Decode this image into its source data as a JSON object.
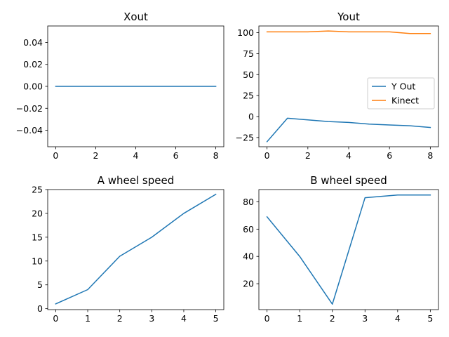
{
  "chart_data": [
    {
      "type": "line",
      "title": "Xout",
      "xlabel": "",
      "ylabel": "",
      "xlim": [
        -0.4,
        8.4
      ],
      "ylim": [
        -0.055,
        0.055
      ],
      "xticks": [
        0,
        2,
        4,
        6,
        8
      ],
      "yticks": [
        -0.04,
        -0.02,
        0.0,
        0.02,
        0.04
      ],
      "ytick_labels": [
        "−0.04",
        "−0.02",
        "0.00",
        "0.02",
        "0.04"
      ],
      "grid": false,
      "legend": null,
      "series": [
        {
          "name": "",
          "color": "#1f77b4",
          "x": [
            0,
            1,
            2,
            3,
            4,
            5,
            6,
            7,
            8
          ],
          "values": [
            0,
            0,
            0,
            0,
            0,
            0,
            0,
            0,
            0
          ]
        }
      ]
    },
    {
      "type": "line",
      "title": "Yout",
      "xlabel": "",
      "ylabel": "",
      "xlim": [
        -0.4,
        8.4
      ],
      "ylim": [
        -36,
        108
      ],
      "xticks": [
        0,
        2,
        4,
        6,
        8
      ],
      "yticks": [
        -25,
        0,
        25,
        50,
        75,
        100
      ],
      "ytick_labels": [
        "−25",
        "0",
        "25",
        "50",
        "75",
        "100"
      ],
      "grid": false,
      "legend": "center-right",
      "series": [
        {
          "name": "Y Out",
          "color": "#1f77b4",
          "x": [
            0,
            1,
            2,
            3,
            4,
            5,
            6,
            7,
            8
          ],
          "values": [
            -30,
            -2,
            -4,
            -6,
            -7,
            -9,
            -10,
            -11,
            -13
          ]
        },
        {
          "name": "Kinect",
          "color": "#ff7f0e",
          "x": [
            0,
            1,
            2,
            3,
            4,
            5,
            6,
            7,
            8
          ],
          "values": [
            101,
            101,
            101,
            102,
            101,
            101,
            101,
            99,
            99
          ]
        }
      ]
    },
    {
      "type": "line",
      "title": "A wheel speed",
      "xlabel": "",
      "ylabel": "",
      "xlim": [
        -0.25,
        5.25
      ],
      "ylim": [
        -0.2,
        25
      ],
      "xticks": [
        0,
        1,
        2,
        3,
        4,
        5
      ],
      "yticks": [
        0,
        5,
        10,
        15,
        20,
        25
      ],
      "ytick_labels": [
        "0",
        "5",
        "10",
        "15",
        "20",
        "25"
      ],
      "grid": false,
      "legend": null,
      "series": [
        {
          "name": "",
          "color": "#1f77b4",
          "x": [
            0,
            1,
            2,
            3,
            4,
            5
          ],
          "values": [
            1,
            4,
            11,
            15,
            20,
            24
          ]
        }
      ]
    },
    {
      "type": "line",
      "title": "B wheel speed",
      "xlabel": "",
      "ylabel": "",
      "xlim": [
        -0.25,
        5.25
      ],
      "ylim": [
        1,
        89
      ],
      "xticks": [
        0,
        1,
        2,
        3,
        4,
        5
      ],
      "yticks": [
        20,
        40,
        60,
        80
      ],
      "ytick_labels": [
        "20",
        "40",
        "60",
        "80"
      ],
      "grid": false,
      "legend": null,
      "series": [
        {
          "name": "",
          "color": "#1f77b4",
          "x": [
            0,
            1,
            2,
            3,
            4,
            5
          ],
          "values": [
            69,
            40,
            5,
            83,
            85,
            85
          ]
        }
      ]
    }
  ]
}
